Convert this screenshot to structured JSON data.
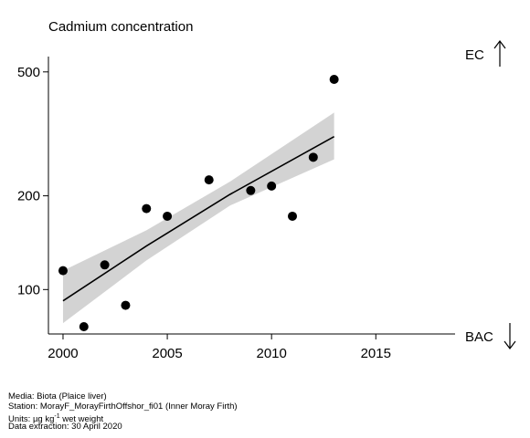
{
  "chart_data": {
    "type": "scatter",
    "title": "Cadmium concentration",
    "y_scale": "log",
    "xlim": [
      1999.3,
      2018.8
    ],
    "ylim": [
      72,
      560
    ],
    "x_ticks": [
      "2000",
      "2005",
      "2010",
      "2015"
    ],
    "y_ticks": [
      "100",
      "200",
      "500"
    ],
    "points": [
      {
        "x": 2000,
        "y": 115
      },
      {
        "x": 2001,
        "y": 76
      },
      {
        "x": 2002,
        "y": 120
      },
      {
        "x": 2003,
        "y": 89
      },
      {
        "x": 2004,
        "y": 182
      },
      {
        "x": 2005,
        "y": 172
      },
      {
        "x": 2007,
        "y": 225
      },
      {
        "x": 2009,
        "y": 208
      },
      {
        "x": 2010,
        "y": 215
      },
      {
        "x": 2011,
        "y": 172
      },
      {
        "x": 2012,
        "y": 266
      },
      {
        "x": 2013,
        "y": 473
      }
    ],
    "trend": {
      "x": [
        2000,
        2004,
        2008,
        2013
      ],
      "fit": [
        92,
        138,
        202,
        310
      ],
      "lower": [
        78,
        124,
        186,
        262
      ],
      "upper": [
        115,
        155,
        222,
        370
      ]
    },
    "ec_label": "EC",
    "bac_label": "BAC",
    "colors": {
      "points": "#000000",
      "band": "#d3d3d3",
      "line": "#000000"
    }
  },
  "footer": {
    "media": "Media: Biota (Plaice liver)",
    "station": "Station: MorayF_MorayFirthOffshor_fi01 (Inner Moray Firth)",
    "units_prefix": "Units: ",
    "units_base1": "µg kg",
    "units_sup": "-1",
    "units_rest": " wet weight",
    "extraction": "Data extraction: 30 April 2020"
  }
}
